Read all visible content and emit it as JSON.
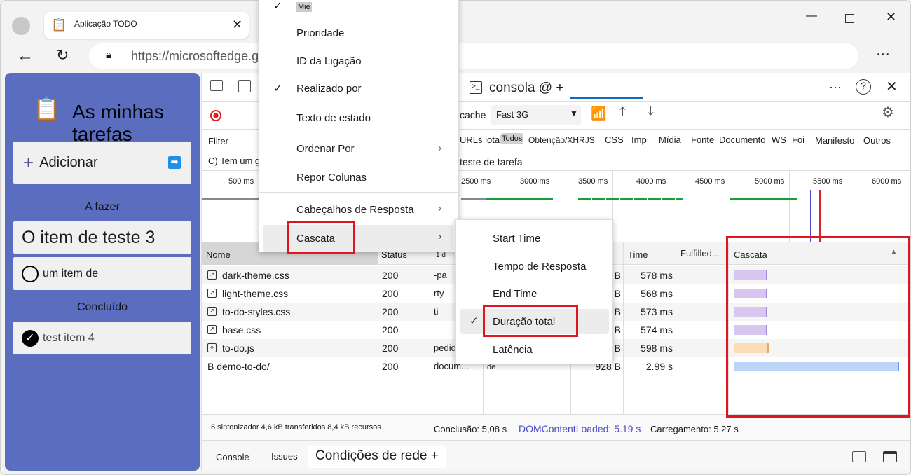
{
  "browser": {
    "tab_title": "Aplicação TODO",
    "url": "https://microsoftedge.g"
  },
  "app": {
    "title": "As minhas tarefas",
    "add_label": "Adicionar",
    "todo_heading": "A fazer",
    "todo_items": [
      "O item de teste 3",
      "um item de"
    ],
    "done_heading": "Concluído",
    "done_items": [
      "test item 4"
    ]
  },
  "devtools": {
    "tab_label": "consola @ +",
    "throttle": "Fast 3G",
    "cache_label": "cache",
    "filter_placeholder": "Filter",
    "filter_types": [
      "URLs iota",
      "Todos",
      "Obtenção/XHRJS",
      "CSS",
      "Imp",
      "Mídia",
      "Fonte",
      "Documento",
      "WS",
      "Foi",
      "Manifesto",
      "Outros"
    ],
    "row2_left": "C) Tem um golpe",
    "row2_right": "teste de tarefa",
    "timeline_ticks": [
      "500 ms",
      "2500 ms",
      "3000 ms",
      "3500 ms",
      "4000 ms",
      "4500 ms",
      "5000 ms",
      "5500 ms",
      "6000 ms"
    ],
    "columns": {
      "name": "Nome",
      "status": "Status",
      "type": "1 d",
      "time": "Time",
      "fulfilled": "Fulfilled...",
      "waterfall": "Cascata"
    },
    "rows": [
      {
        "name": "dark-theme.css",
        "status": "200",
        "type": "-pa",
        "size": "B",
        "time": "578 ms",
        "icon": "css-file-icon"
      },
      {
        "name": "light-theme.css",
        "status": "200",
        "type": "rty",
        "size": "B",
        "time": "568 ms",
        "icon": "css-file-icon"
      },
      {
        "name": "to-do-styles.css",
        "status": "200",
        "type": "ti",
        "size": "B",
        "time": "573 ms",
        "icon": "css-file-icon"
      },
      {
        "name": "base.css",
        "status": "200",
        "type": "",
        "size": "B",
        "time": "574 ms",
        "icon": "css-file-icon"
      },
      {
        "name": "to-do.js",
        "status": "200",
        "type": "pedidos",
        "size": "B",
        "time": "598 ms",
        "icon": "js-file-icon"
      },
      {
        "name": "B demo-to-do/",
        "status": "200",
        "type": "docum...",
        "initiator": "de",
        "size": "928 B",
        "time": "2.99 s",
        "icon": ""
      }
    ],
    "summary": "6 sintonizador 4,6 kB transferidos 8,4 kB recursos",
    "finish": "Conclusão: 5,08 s",
    "dcl": "DOMContentLoaded: 5.19 s",
    "load": "Carregamento: 5,27 s",
    "drawer_tabs": [
      "Console",
      "Issues",
      "Condições de rede +"
    ]
  },
  "context_menu": {
    "items": [
      {
        "label": "Mie",
        "checked": true
      },
      {
        "label": "Prioridade"
      },
      {
        "label": "ID da Ligação"
      },
      {
        "label": "Realizado por",
        "checked": true
      },
      {
        "label": "Texto de estado"
      },
      {
        "label": "Ordenar Por",
        "submenu": true
      },
      {
        "label": "Repor Colunas"
      },
      {
        "label": "Cabeçalhos de Resposta",
        "submenu": true
      },
      {
        "label": "Cascata",
        "submenu": true
      }
    ]
  },
  "submenu": {
    "items": [
      {
        "label": "Start Time"
      },
      {
        "label": "Tempo de Resposta"
      },
      {
        "label": "End Time"
      },
      {
        "label": "Duração total",
        "checked": true
      },
      {
        "label": "Latência"
      }
    ]
  },
  "colors": {
    "app_bg": "#5b6dbf",
    "highlight": "#e0151f",
    "css_bar": "#d9c6f0",
    "js_bar": "#fcdcb8",
    "doc_bar": "#bcd4f5",
    "dcl": "#4a4ac8"
  }
}
